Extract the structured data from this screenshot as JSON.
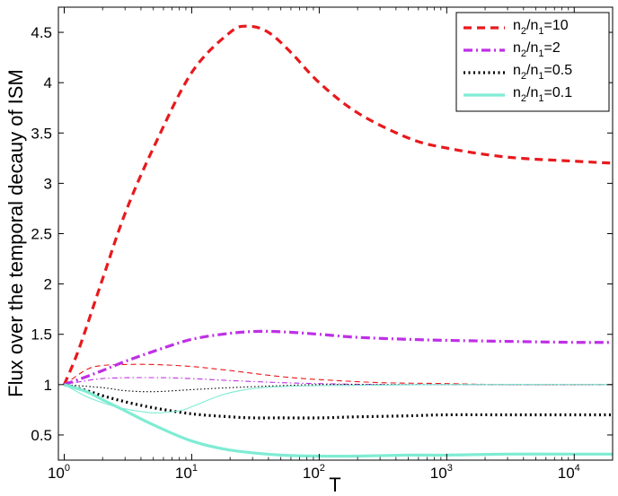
{
  "chart_data": {
    "type": "line",
    "title": "",
    "xlabel": "T",
    "ylabel": "Flux over the temporal decauy of ISM",
    "xscale": "log",
    "xlim": [
      0.9,
      20000
    ],
    "ylim": [
      0.25,
      4.75
    ],
    "x_ticks": [
      {
        "value": 1,
        "base": "10",
        "exp": "0"
      },
      {
        "value": 10,
        "base": "10",
        "exp": "1"
      },
      {
        "value": 100,
        "base": "10",
        "exp": "2"
      },
      {
        "value": 1000,
        "base": "10",
        "exp": "3"
      },
      {
        "value": 10000,
        "base": "10",
        "exp": "4"
      }
    ],
    "y_ticks": [
      "0.5",
      "1",
      "1.5",
      "2",
      "2.5",
      "3",
      "3.5",
      "4",
      "4.5"
    ],
    "grid": false,
    "legend_position": "top-right",
    "legend": [
      {
        "pre": "n",
        "s1": "2",
        "mid": "/n",
        "s2": "1",
        "post": "=10",
        "style": "dashed",
        "color": "#e8191d"
      },
      {
        "pre": "n",
        "s1": "2",
        "mid": "/n",
        "s2": "1",
        "post": "=2",
        "style": "dashdot",
        "color": "#bf2fe6"
      },
      {
        "pre": "n",
        "s1": "2",
        "mid": "/n",
        "s2": "1",
        "post": "=0.5",
        "style": "dotted",
        "color": "#000000"
      },
      {
        "pre": "n",
        "s1": "2",
        "mid": "/n",
        "s2": "1",
        "post": "=0.1",
        "style": "solid",
        "color": "#7fecd4"
      }
    ],
    "series": [
      {
        "style": "dashed",
        "color": "#e8191d",
        "weight": "thick",
        "x": [
          1,
          1.3,
          2,
          3,
          5,
          10,
          20,
          28,
          40,
          60,
          100,
          200,
          500,
          1000,
          3000,
          10000,
          20000
        ],
        "y": [
          1.0,
          1.35,
          2.05,
          2.7,
          3.35,
          4.1,
          4.5,
          4.56,
          4.5,
          4.3,
          4.0,
          3.7,
          3.45,
          3.35,
          3.26,
          3.22,
          3.2
        ]
      },
      {
        "style": "dashed",
        "color": "#e8191d",
        "weight": "thin",
        "x": [
          1,
          1.5,
          2,
          3,
          5,
          10,
          20,
          50,
          100,
          300,
          1000,
          3000,
          20000
        ],
        "y": [
          1.0,
          1.15,
          1.19,
          1.2,
          1.2,
          1.18,
          1.14,
          1.08,
          1.05,
          1.02,
          1.01,
          1.0,
          1.0
        ]
      },
      {
        "style": "dashdot",
        "color": "#bf2fe6",
        "weight": "thick",
        "x": [
          1,
          1.5,
          2,
          3,
          5,
          10,
          20,
          35,
          60,
          100,
          200,
          500,
          1000,
          3000,
          10000,
          20000
        ],
        "y": [
          1.0,
          1.08,
          1.14,
          1.23,
          1.33,
          1.45,
          1.51,
          1.53,
          1.52,
          1.5,
          1.47,
          1.45,
          1.44,
          1.43,
          1.42,
          1.42
        ]
      },
      {
        "style": "dashdot",
        "color": "#bf2fe6",
        "weight": "thin",
        "x": [
          1,
          2,
          5,
          10,
          20,
          50,
          100,
          300,
          1000,
          20000
        ],
        "y": [
          1.0,
          1.06,
          1.07,
          1.06,
          1.04,
          1.02,
          1.01,
          1.0,
          1.0,
          1.0
        ]
      },
      {
        "style": "dotted",
        "color": "#000000",
        "weight": "thick",
        "x": [
          1,
          1.5,
          2,
          3,
          5,
          10,
          20,
          30,
          50,
          100,
          200,
          500,
          1000,
          3000,
          10000,
          20000
        ],
        "y": [
          1.0,
          0.94,
          0.89,
          0.83,
          0.77,
          0.71,
          0.68,
          0.67,
          0.67,
          0.67,
          0.68,
          0.69,
          0.7,
          0.7,
          0.7,
          0.7
        ]
      },
      {
        "style": "dotted",
        "color": "#000000",
        "weight": "thin",
        "x": [
          1,
          2,
          3,
          5,
          10,
          20,
          50,
          100,
          300,
          1000,
          20000
        ],
        "y": [
          1.0,
          0.97,
          0.94,
          0.93,
          0.95,
          0.97,
          0.99,
          1.0,
          1.0,
          1.0,
          1.0
        ]
      },
      {
        "style": "solid",
        "color": "#7fecd4",
        "weight": "thick",
        "x": [
          1,
          1.5,
          2,
          3,
          5,
          10,
          20,
          50,
          100,
          200,
          500,
          1000,
          3000,
          10000,
          20000
        ],
        "y": [
          1.0,
          0.93,
          0.85,
          0.74,
          0.6,
          0.44,
          0.35,
          0.3,
          0.29,
          0.29,
          0.3,
          0.3,
          0.31,
          0.31,
          0.31
        ]
      },
      {
        "style": "solid",
        "color": "#7fecd4",
        "weight": "thin",
        "x": [
          1,
          1.5,
          2,
          3,
          5,
          8,
          10,
          15,
          20,
          30,
          50,
          100,
          1000,
          20000
        ],
        "y": [
          1.0,
          0.88,
          0.82,
          0.76,
          0.72,
          0.74,
          0.78,
          0.87,
          0.92,
          0.96,
          0.98,
          0.99,
          1.0,
          1.0
        ]
      }
    ]
  }
}
